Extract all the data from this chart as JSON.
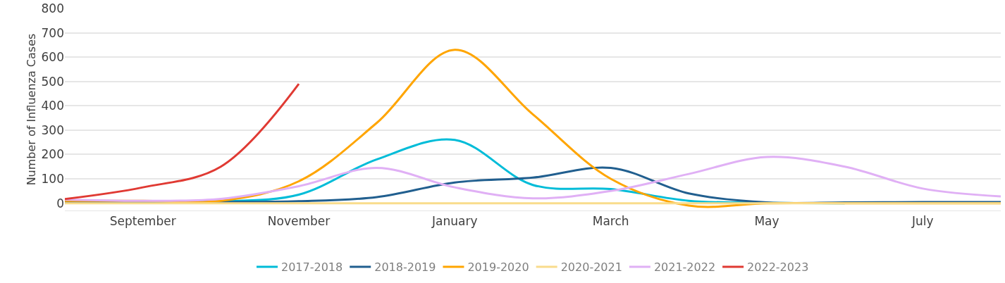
{
  "chart_data": {
    "type": "line",
    "ylabel": "Number of Influenza Cases",
    "categories": [
      null,
      "September",
      null,
      "November",
      null,
      "January",
      null,
      "March",
      null,
      "May",
      null,
      "July",
      null
    ],
    "series": [
      {
        "name": "2017-2018",
        "color": "#00bcd8",
        "values": [
          10,
          8,
          8,
          35,
          180,
          260,
          75,
          58,
          10,
          2,
          0,
          null,
          null
        ]
      },
      {
        "name": "2018-2019",
        "color": "#215f8f",
        "values": [
          5,
          5,
          5,
          8,
          25,
          85,
          105,
          145,
          40,
          3,
          3,
          5,
          5
        ]
      },
      {
        "name": "2019-2020",
        "color": "#ffa500",
        "values": [
          10,
          10,
          10,
          90,
          330,
          630,
          365,
          100,
          -10,
          0,
          0,
          0,
          0
        ]
      },
      {
        "name": "2020-2021",
        "color": "#f9dc8c",
        "values": [
          0,
          0,
          0,
          0,
          0,
          0,
          0,
          0,
          0,
          0,
          0,
          0,
          0
        ]
      },
      {
        "name": "2021-2022",
        "color": "#e0b0f5",
        "values": [
          15,
          10,
          18,
          70,
          145,
          65,
          20,
          50,
          120,
          190,
          150,
          60,
          28
        ]
      },
      {
        "name": "2022-2023",
        "color": "#e03a33",
        "values": [
          17,
          65,
          150,
          490,
          null,
          null,
          null,
          null,
          null,
          null,
          null,
          null,
          null
        ]
      }
    ],
    "ylim": [
      -30,
      800
    ],
    "yticks": [
      0,
      100,
      200,
      300,
      400,
      500,
      600,
      700,
      800
    ],
    "grid": "y",
    "legend": "bottom",
    "marker": "none",
    "line_style": "solid"
  }
}
